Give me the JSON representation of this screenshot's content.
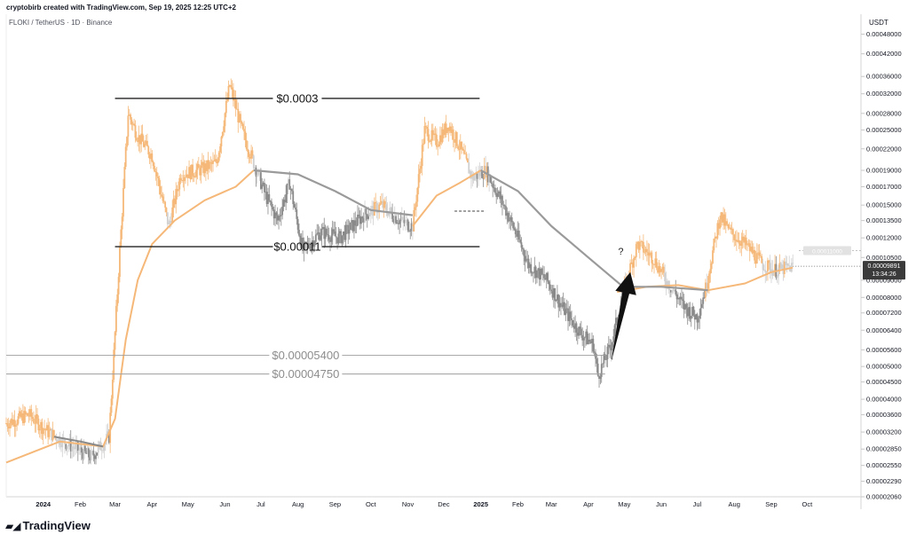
{
  "header": {
    "attribution": "cryptobirb created with TradingView.com, Sep 19, 2025 12:25 UTC+2"
  },
  "symbol_line": "FLOKI / TetherUS · 1D · Binance",
  "currency": "USDT",
  "brand": "TradingView",
  "colors": {
    "orange": "#f5b878",
    "gray_candle": "#8a8a8a",
    "light_candle": "#d0d0d0",
    "ma_orange": "#f5b878",
    "ma_gray": "#9a9a9a",
    "line_dark": "#444444",
    "arrow": "#111111"
  },
  "chart_data": {
    "type": "candlestick",
    "y_scale": "log",
    "ylim": [
      2.06e-05,
      0.00055
    ],
    "y_ticks": [
      "0.00048000",
      "0.00042000",
      "0.00036000",
      "0.00032000",
      "0.00028000",
      "0.00025000",
      "0.00022000",
      "0.00019000",
      "0.00017000",
      "0.00015000",
      "0.00013500",
      "0.00012000",
      "0.00010500",
      "0.00009000",
      "0.00008000",
      "0.00007200",
      "0.00006400",
      "0.00005600",
      "0.00005000",
      "0.00004500",
      "0.00004000",
      "0.00003600",
      "0.00003200",
      "0.00002850",
      "0.00002550",
      "0.00002290",
      "0.00002060"
    ],
    "x_ticks": [
      {
        "label": "2024",
        "date": "2024-01-01",
        "bold": true
      },
      {
        "label": "Feb",
        "date": "2024-02-01"
      },
      {
        "label": "Mar",
        "date": "2024-03-01"
      },
      {
        "label": "Apr",
        "date": "2024-04-01"
      },
      {
        "label": "May",
        "date": "2024-05-01"
      },
      {
        "label": "Jun",
        "date": "2024-06-01"
      },
      {
        "label": "Jul",
        "date": "2024-07-01"
      },
      {
        "label": "Aug",
        "date": "2024-08-01"
      },
      {
        "label": "Sep",
        "date": "2024-09-01"
      },
      {
        "label": "Oct",
        "date": "2024-10-01"
      },
      {
        "label": "Nov",
        "date": "2024-11-01"
      },
      {
        "label": "Dec",
        "date": "2024-12-01"
      },
      {
        "label": "2025",
        "date": "2025-01-01",
        "bold": true
      },
      {
        "label": "Feb",
        "date": "2025-02-01"
      },
      {
        "label": "Mar",
        "date": "2025-03-01"
      },
      {
        "label": "Apr",
        "date": "2025-04-01"
      },
      {
        "label": "May",
        "date": "2025-05-01"
      },
      {
        "label": "Jun",
        "date": "2025-06-01"
      },
      {
        "label": "Jul",
        "date": "2025-07-01"
      },
      {
        "label": "Aug",
        "date": "2025-08-01"
      },
      {
        "label": "Sep",
        "date": "2025-09-01"
      },
      {
        "label": "Oct",
        "date": "2025-10-01"
      }
    ],
    "price_path": [
      {
        "date": "2023-12-01",
        "close": 3.4e-05
      },
      {
        "date": "2023-12-20",
        "close": 3.6e-05
      },
      {
        "date": "2024-01-05",
        "close": 3.2e-05
      },
      {
        "date": "2024-01-25",
        "close": 2.9e-05
      },
      {
        "date": "2024-02-10",
        "close": 2.7e-05
      },
      {
        "date": "2024-02-25",
        "close": 3.1e-05
      },
      {
        "date": "2024-03-05",
        "close": 0.00011
      },
      {
        "date": "2024-03-12",
        "close": 0.00028
      },
      {
        "date": "2024-03-20",
        "close": 0.00024
      },
      {
        "date": "2024-04-01",
        "close": 0.00021
      },
      {
        "date": "2024-04-15",
        "close": 0.00013
      },
      {
        "date": "2024-04-25",
        "close": 0.000185
      },
      {
        "date": "2024-05-10",
        "close": 0.00019
      },
      {
        "date": "2024-05-25",
        "close": 0.0002
      },
      {
        "date": "2024-06-05",
        "close": 0.00034
      },
      {
        "date": "2024-06-15",
        "close": 0.00025
      },
      {
        "date": "2024-06-25",
        "close": 0.0002
      },
      {
        "date": "2024-07-05",
        "close": 0.00016
      },
      {
        "date": "2024-07-15",
        "close": 0.000135
      },
      {
        "date": "2024-07-25",
        "close": 0.000175
      },
      {
        "date": "2024-08-05",
        "close": 0.00011
      },
      {
        "date": "2024-08-20",
        "close": 0.000125
      },
      {
        "date": "2024-09-05",
        "close": 0.00012
      },
      {
        "date": "2024-09-25",
        "close": 0.00014
      },
      {
        "date": "2024-10-10",
        "close": 0.00015
      },
      {
        "date": "2024-10-25",
        "close": 0.000135
      },
      {
        "date": "2024-11-05",
        "close": 0.00013
      },
      {
        "date": "2024-11-15",
        "close": 0.00025
      },
      {
        "date": "2024-11-25",
        "close": 0.00023
      },
      {
        "date": "2024-12-05",
        "close": 0.00026
      },
      {
        "date": "2024-12-15",
        "close": 0.00022
      },
      {
        "date": "2024-12-25",
        "close": 0.00018
      },
      {
        "date": "2025-01-05",
        "close": 0.00019
      },
      {
        "date": "2025-01-20",
        "close": 0.00015
      },
      {
        "date": "2025-02-01",
        "close": 0.00012
      },
      {
        "date": "2025-02-10",
        "close": 0.0001
      },
      {
        "date": "2025-02-25",
        "close": 9e-05
      },
      {
        "date": "2025-03-10",
        "close": 7.5e-05
      },
      {
        "date": "2025-03-25",
        "close": 6.3e-05
      },
      {
        "date": "2025-04-05",
        "close": 5.8e-05
      },
      {
        "date": "2025-04-09",
        "close": 4.7e-05
      },
      {
        "date": "2025-04-20",
        "close": 5.8e-05
      },
      {
        "date": "2025-05-01",
        "close": 8.5e-05
      },
      {
        "date": "2025-05-12",
        "close": 0.000115
      },
      {
        "date": "2025-05-25",
        "close": 0.000105
      },
      {
        "date": "2025-06-05",
        "close": 9e-05
      },
      {
        "date": "2025-06-20",
        "close": 7.5e-05
      },
      {
        "date": "2025-07-01",
        "close": 7e-05
      },
      {
        "date": "2025-07-08",
        "close": 8.5e-05
      },
      {
        "date": "2025-07-20",
        "close": 0.00014
      },
      {
        "date": "2025-07-28",
        "close": 0.000125
      },
      {
        "date": "2025-08-10",
        "close": 0.000115
      },
      {
        "date": "2025-08-25",
        "close": 0.0001
      },
      {
        "date": "2025-09-05",
        "close": 9.6e-05
      },
      {
        "date": "2025-09-19",
        "close": 9.891e-05
      }
    ],
    "orange_ma": [
      {
        "date": "2023-12-01",
        "value": 2.6e-05
      },
      {
        "date": "2024-01-15",
        "value": 3e-05
      },
      {
        "date": "2024-02-20",
        "value": 2.9e-05
      },
      {
        "date": "2024-03-01",
        "value": 3.5e-05
      },
      {
        "date": "2024-03-10",
        "value": 6e-05
      },
      {
        "date": "2024-03-20",
        "value": 9e-05
      },
      {
        "date": "2024-04-01",
        "value": 0.000115
      },
      {
        "date": "2024-04-20",
        "value": 0.000135
      },
      {
        "date": "2024-05-15",
        "value": 0.000155
      },
      {
        "date": "2024-06-10",
        "value": 0.00017
      },
      {
        "date": "2024-06-25",
        "value": 0.00019
      }
    ],
    "orange_ma_2": [
      {
        "date": "2024-11-05",
        "value": 0.00013
      },
      {
        "date": "2024-11-25",
        "value": 0.00016
      },
      {
        "date": "2024-12-15",
        "value": 0.000175
      },
      {
        "date": "2025-01-01",
        "value": 0.00019
      }
    ],
    "orange_ma_3": [
      {
        "date": "2025-04-25",
        "value": 8.3e-05
      },
      {
        "date": "2025-05-20",
        "value": 8.6e-05
      },
      {
        "date": "2025-06-15",
        "value": 8.7e-05
      },
      {
        "date": "2025-07-10",
        "value": 8.4e-05
      },
      {
        "date": "2025-08-10",
        "value": 8.8e-05
      },
      {
        "date": "2025-09-01",
        "value": 9.5e-05
      },
      {
        "date": "2025-09-19",
        "value": 9.8e-05
      }
    ],
    "gray_ma": [
      {
        "date": "2024-06-25",
        "value": 0.00019
      },
      {
        "date": "2024-08-01",
        "value": 0.000185
      },
      {
        "date": "2024-09-01",
        "value": 0.000165
      },
      {
        "date": "2024-10-01",
        "value": 0.000145
      },
      {
        "date": "2024-11-05",
        "value": 0.00014
      }
    ],
    "gray_ma_2": [
      {
        "date": "2025-01-01",
        "value": 0.00019
      },
      {
        "date": "2025-02-01",
        "value": 0.000165
      },
      {
        "date": "2025-03-01",
        "value": 0.00013
      },
      {
        "date": "2025-04-01",
        "value": 0.000105
      },
      {
        "date": "2025-04-30",
        "value": 8.6e-05
      },
      {
        "date": "2025-06-01",
        "value": 8.6e-05
      },
      {
        "date": "2025-07-10",
        "value": 8.4e-05
      }
    ],
    "gray_ma_early": [
      {
        "date": "2024-01-10",
        "value": 3.1e-05
      },
      {
        "date": "2024-02-01",
        "value": 3e-05
      },
      {
        "date": "2024-02-20",
        "value": 2.9e-05
      }
    ],
    "horizontal_levels": [
      {
        "label": "$0.0003",
        "value": 0.00031,
        "start": "2024-03-01",
        "end": "2024-12-31",
        "style": "dark"
      },
      {
        "label": "$0.00011",
        "value": 0.000113,
        "start": "2024-03-01",
        "end": "2024-12-31",
        "style": "dark"
      },
      {
        "label": "$0.00005400",
        "value": 5.4e-05,
        "start": "2023-12-01",
        "end": "2025-04-15",
        "style": "gray"
      },
      {
        "label": "$0.00004750",
        "value": 4.75e-05,
        "start": "2023-12-01",
        "end": "2025-04-15",
        "style": "gray"
      }
    ],
    "dashed_level": {
      "value": 0.000144,
      "start": "2024-12-10",
      "end": "2025-01-05"
    },
    "annotation": {
      "text": "?",
      "date": "2025-05-01",
      "value": 0.000107
    },
    "arrow": {
      "from_date": "2025-04-20",
      "from_value": 5.15e-05,
      "to_date": "2025-05-06",
      "to_value": 9.5e-05
    },
    "last_price": {
      "value": 9.891e-05,
      "label": "0.00009891",
      "countdown": "13:34:26"
    },
    "ghost_price": {
      "value": 0.00011,
      "label": "0.00011000"
    }
  }
}
